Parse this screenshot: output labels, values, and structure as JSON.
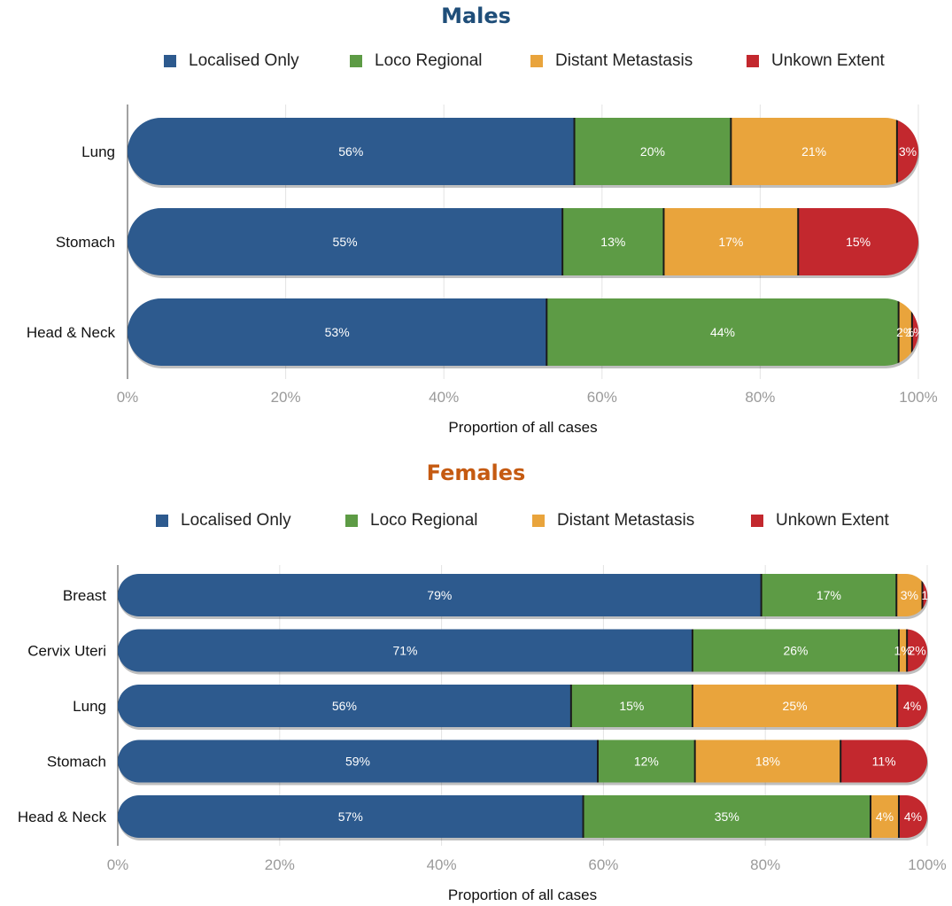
{
  "chart_data": [
    {
      "type": "bar",
      "orientation": "horizontal",
      "stacked": true,
      "title": "Males",
      "xlabel": "Proportion of all cases",
      "xlim": [
        0,
        100
      ],
      "xticks": [
        "0%",
        "20%",
        "40%",
        "60%",
        "80%",
        "100%"
      ],
      "categories": [
        "Lung",
        "Stomach",
        "Head & Neck"
      ],
      "series": [
        {
          "name": "Localised Only",
          "values": [
            56.5,
            55,
            53
          ],
          "labels": [
            "56%",
            "55%",
            "53%"
          ]
        },
        {
          "name": "Loco Regional",
          "values": [
            19.8,
            12.8,
            44.5
          ],
          "labels": [
            "20%",
            "13%",
            "44%"
          ]
        },
        {
          "name": "Distant Metastasis",
          "values": [
            21,
            17,
            1.7
          ],
          "labels": [
            "21%",
            "17%",
            "2%"
          ]
        },
        {
          "name": "Unkown Extent",
          "values": [
            2.7,
            15.2,
            0.8
          ],
          "labels": [
            "3%",
            "15%",
            "1%"
          ]
        }
      ],
      "legend_position": "top",
      "grid": true
    },
    {
      "type": "bar",
      "orientation": "horizontal",
      "stacked": true,
      "title": "Females",
      "xlabel": "Proportion of all cases",
      "xlim": [
        0,
        100
      ],
      "xticks": [
        "0%",
        "20%",
        "40%",
        "60%",
        "80%",
        "100%"
      ],
      "categories": [
        "Breast",
        "Cervix Uteri",
        "Lung",
        "Stomach",
        "Head & Neck"
      ],
      "series": [
        {
          "name": "Localised Only",
          "values": [
            79.5,
            71,
            56,
            59.3,
            57.5
          ],
          "labels": [
            "79%",
            "71%",
            "56%",
            "59%",
            "57%"
          ]
        },
        {
          "name": "Loco Regional",
          "values": [
            16.7,
            25.5,
            15,
            12,
            35.5
          ],
          "labels": [
            "17%",
            "26%",
            "15%",
            "12%",
            "35%"
          ]
        },
        {
          "name": "Distant Metastasis",
          "values": [
            3.2,
            1,
            25.3,
            18,
            3.5
          ],
          "labels": [
            "3%",
            "1%",
            "25%",
            "18%",
            "4%"
          ]
        },
        {
          "name": "Unkown Extent",
          "values": [
            0.6,
            2.5,
            3.7,
            10.7,
            3.5
          ],
          "labels": [
            "1",
            "2%",
            "4%",
            "11%",
            "4%"
          ]
        }
      ],
      "legend_position": "top",
      "grid": true
    }
  ],
  "colors": {
    "localised": "#2d5a8e",
    "loco": "#5d9b45",
    "distant": "#e9a43c",
    "unknown": "#c3282e",
    "males_title": "#1f4e79",
    "females_title": "#c55a11",
    "grid": "#e3e3e3",
    "tick_text": "#9a9a9a"
  }
}
